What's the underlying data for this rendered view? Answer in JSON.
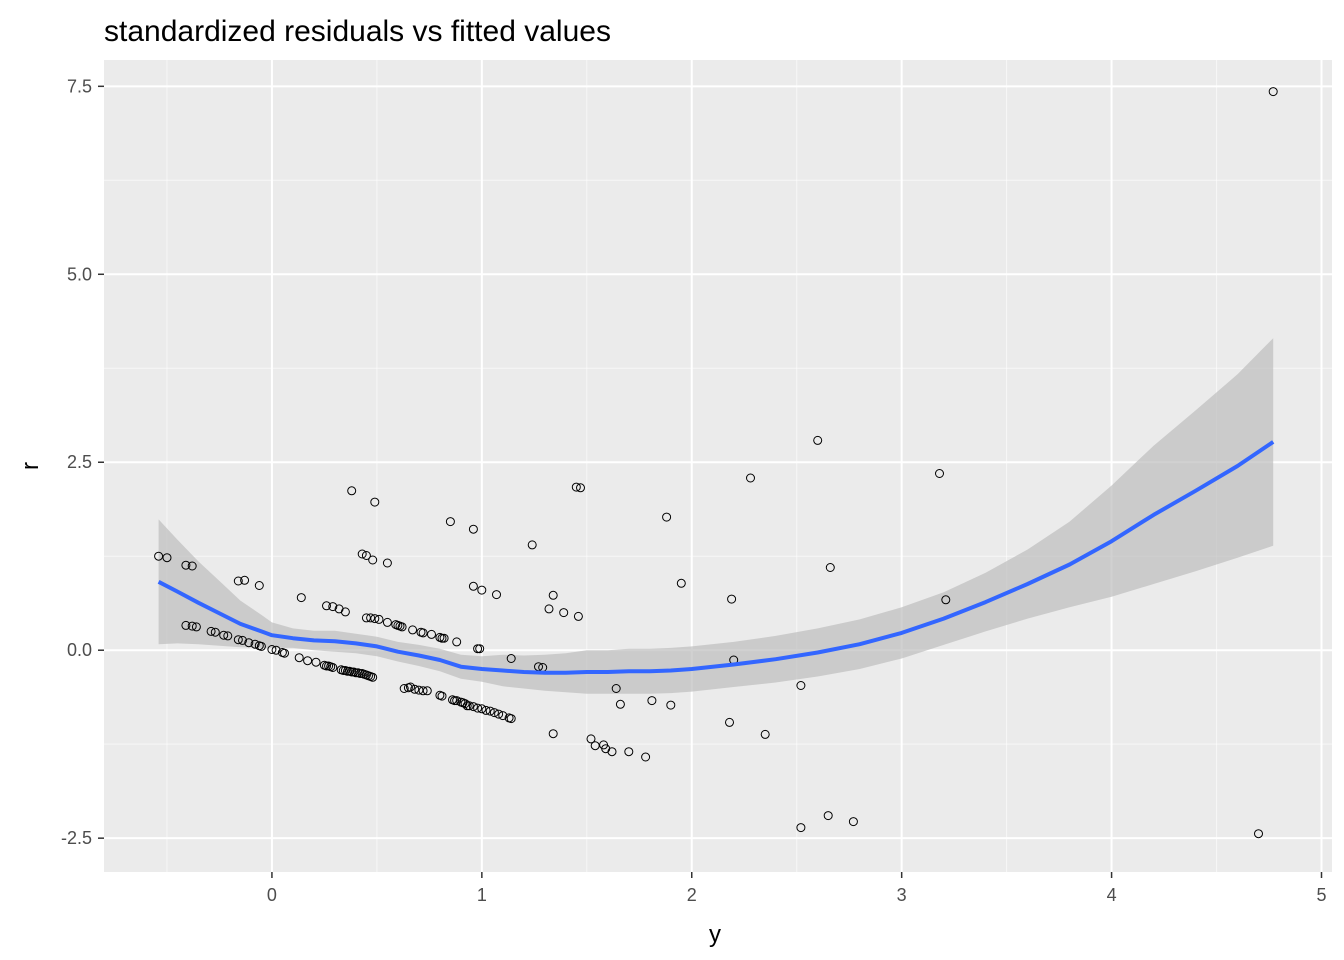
{
  "chart_data": {
    "type": "scatter",
    "title": "standardized residuals vs fitted values",
    "xlabel": "y",
    "ylabel": "r",
    "xlim": [
      -0.8,
      5.05
    ],
    "ylim": [
      -2.95,
      7.85
    ],
    "x_ticks": [
      0,
      1,
      2,
      3,
      4,
      5
    ],
    "y_ticks": [
      -2.5,
      0.0,
      2.5,
      5.0,
      7.5
    ],
    "x_tick_labels": [
      "0",
      "1",
      "2",
      "3",
      "4",
      "5"
    ],
    "y_tick_labels": [
      "-2.5",
      "0.0",
      "2.5",
      "5.0",
      "7.5"
    ],
    "grid": true,
    "legend": "none",
    "colors": {
      "panel": "#ebebeb",
      "grid_major": "#ffffff",
      "smooth_line": "#3366ff",
      "band": "#bdbdbd",
      "points": "#000000"
    },
    "points": [
      [
        -0.54,
        1.25
      ],
      [
        -0.5,
        1.23
      ],
      [
        -0.41,
        1.13
      ],
      [
        -0.38,
        1.12
      ],
      [
        -0.41,
        0.33
      ],
      [
        -0.38,
        0.32
      ],
      [
        -0.36,
        0.31
      ],
      [
        -0.29,
        0.25
      ],
      [
        -0.27,
        0.24
      ],
      [
        -0.23,
        0.2
      ],
      [
        -0.21,
        0.19
      ],
      [
        -0.16,
        0.92
      ],
      [
        -0.13,
        0.93
      ],
      [
        -0.06,
        0.86
      ],
      [
        -0.16,
        0.14
      ],
      [
        -0.14,
        0.13
      ],
      [
        -0.11,
        0.1
      ],
      [
        -0.08,
        0.08
      ],
      [
        -0.06,
        0.06
      ],
      [
        -0.05,
        0.05
      ],
      [
        0.0,
        0.01
      ],
      [
        0.02,
        0.0
      ],
      [
        0.05,
        -0.03
      ],
      [
        0.06,
        -0.04
      ],
      [
        0.13,
        -0.1
      ],
      [
        0.17,
        -0.14
      ],
      [
        0.21,
        -0.16
      ],
      [
        0.14,
        0.7
      ],
      [
        0.26,
        0.59
      ],
      [
        0.29,
        0.58
      ],
      [
        0.32,
        0.55
      ],
      [
        0.35,
        0.51
      ],
      [
        0.25,
        -0.2
      ],
      [
        0.26,
        -0.21
      ],
      [
        0.27,
        -0.21
      ],
      [
        0.28,
        -0.22
      ],
      [
        0.29,
        -0.23
      ],
      [
        0.33,
        -0.26
      ],
      [
        0.34,
        -0.27
      ],
      [
        0.35,
        -0.27
      ],
      [
        0.36,
        -0.28
      ],
      [
        0.37,
        -0.28
      ],
      [
        0.38,
        -0.29
      ],
      [
        0.39,
        -0.29
      ],
      [
        0.4,
        -0.3
      ],
      [
        0.41,
        -0.3
      ],
      [
        0.42,
        -0.31
      ],
      [
        0.43,
        -0.31
      ],
      [
        0.44,
        -0.32
      ],
      [
        0.45,
        -0.33
      ],
      [
        0.46,
        -0.34
      ],
      [
        0.47,
        -0.35
      ],
      [
        0.48,
        -0.36
      ],
      [
        0.38,
        2.12
      ],
      [
        0.49,
        1.97
      ],
      [
        0.43,
        1.28
      ],
      [
        0.45,
        1.26
      ],
      [
        0.48,
        1.2
      ],
      [
        0.55,
        1.16
      ],
      [
        0.45,
        0.43
      ],
      [
        0.47,
        0.43
      ],
      [
        0.49,
        0.42
      ],
      [
        0.51,
        0.41
      ],
      [
        0.55,
        0.37
      ],
      [
        0.59,
        0.34
      ],
      [
        0.6,
        0.33
      ],
      [
        0.61,
        0.32
      ],
      [
        0.62,
        0.31
      ],
      [
        0.67,
        0.27
      ],
      [
        0.71,
        0.24
      ],
      [
        0.72,
        0.23
      ],
      [
        0.76,
        0.21
      ],
      [
        0.8,
        0.17
      ],
      [
        0.81,
        0.16
      ],
      [
        0.82,
        0.16
      ],
      [
        0.88,
        0.11
      ],
      [
        0.63,
        -0.51
      ],
      [
        0.65,
        -0.5
      ],
      [
        0.66,
        -0.49
      ],
      [
        0.68,
        -0.52
      ],
      [
        0.7,
        -0.53
      ],
      [
        0.72,
        -0.54
      ],
      [
        0.74,
        -0.54
      ],
      [
        0.8,
        -0.6
      ],
      [
        0.81,
        -0.61
      ],
      [
        0.86,
        -0.66
      ],
      [
        0.87,
        -0.67
      ],
      [
        0.88,
        -0.67
      ],
      [
        0.9,
        -0.69
      ],
      [
        0.91,
        -0.7
      ],
      [
        0.92,
        -0.71
      ],
      [
        0.93,
        -0.74
      ],
      [
        0.94,
        -0.74
      ],
      [
        0.96,
        -0.75
      ],
      [
        0.98,
        -0.77
      ],
      [
        1.0,
        -0.78
      ],
      [
        1.02,
        -0.8
      ],
      [
        1.04,
        -0.81
      ],
      [
        1.06,
        -0.83
      ],
      [
        1.08,
        -0.85
      ],
      [
        1.1,
        -0.87
      ],
      [
        1.13,
        -0.9
      ],
      [
        1.14,
        -0.91
      ],
      [
        0.85,
        1.71
      ],
      [
        0.96,
        1.61
      ],
      [
        0.96,
        0.85
      ],
      [
        1.0,
        0.8
      ],
      [
        1.07,
        0.74
      ],
      [
        0.98,
        0.02
      ],
      [
        0.99,
        0.02
      ],
      [
        1.14,
        -0.11
      ],
      [
        1.24,
        1.4
      ],
      [
        1.27,
        -0.22
      ],
      [
        1.29,
        -0.23
      ],
      [
        1.32,
        0.55
      ],
      [
        1.34,
        0.73
      ],
      [
        1.39,
        0.5
      ],
      [
        1.46,
        0.45
      ],
      [
        1.45,
        2.17
      ],
      [
        1.47,
        2.16
      ],
      [
        1.34,
        -1.11
      ],
      [
        1.52,
        -1.18
      ],
      [
        1.54,
        -1.27
      ],
      [
        1.58,
        -1.26
      ],
      [
        1.59,
        -1.31
      ],
      [
        1.62,
        -1.35
      ],
      [
        1.64,
        -0.51
      ],
      [
        1.66,
        -0.72
      ],
      [
        1.7,
        -1.35
      ],
      [
        1.78,
        -1.42
      ],
      [
        1.81,
        -0.67
      ],
      [
        1.88,
        1.77
      ],
      [
        1.9,
        -0.73
      ],
      [
        1.95,
        0.89
      ],
      [
        2.18,
        -0.96
      ],
      [
        2.19,
        0.68
      ],
      [
        2.2,
        -0.13
      ],
      [
        2.28,
        2.29
      ],
      [
        2.35,
        -1.12
      ],
      [
        2.52,
        -0.47
      ],
      [
        2.52,
        -2.36
      ],
      [
        2.6,
        2.79
      ],
      [
        2.65,
        -2.2
      ],
      [
        2.66,
        1.1
      ],
      [
        2.77,
        -2.28
      ],
      [
        3.18,
        2.35
      ],
      [
        3.21,
        0.67
      ],
      [
        4.7,
        -2.44
      ],
      [
        4.77,
        7.43
      ]
    ],
    "smooth": {
      "x": [
        -0.54,
        -0.45,
        -0.35,
        -0.25,
        -0.15,
        -0.05,
        0.0,
        0.1,
        0.2,
        0.3,
        0.4,
        0.5,
        0.6,
        0.7,
        0.8,
        0.9,
        1.0,
        1.1,
        1.2,
        1.3,
        1.4,
        1.5,
        1.6,
        1.7,
        1.8,
        1.9,
        2.0,
        2.2,
        2.4,
        2.6,
        2.8,
        3.0,
        3.2,
        3.4,
        3.6,
        3.8,
        4.0,
        4.2,
        4.4,
        4.6,
        4.77
      ],
      "y": [
        0.91,
        0.78,
        0.63,
        0.49,
        0.35,
        0.25,
        0.2,
        0.16,
        0.13,
        0.12,
        0.09,
        0.05,
        -0.02,
        -0.07,
        -0.13,
        -0.22,
        -0.25,
        -0.27,
        -0.29,
        -0.3,
        -0.3,
        -0.29,
        -0.29,
        -0.28,
        -0.28,
        -0.27,
        -0.25,
        -0.19,
        -0.12,
        -0.03,
        0.08,
        0.23,
        0.42,
        0.64,
        0.88,
        1.14,
        1.45,
        1.8,
        2.12,
        2.45,
        2.77
      ],
      "lower": [
        0.08,
        0.09,
        0.08,
        0.06,
        0.04,
        0.03,
        0.03,
        0.03,
        -0.0,
        -0.02,
        -0.04,
        -0.08,
        -0.15,
        -0.21,
        -0.28,
        -0.38,
        -0.42,
        -0.48,
        -0.51,
        -0.54,
        -0.56,
        -0.58,
        -0.58,
        -0.58,
        -0.58,
        -0.57,
        -0.55,
        -0.49,
        -0.43,
        -0.35,
        -0.25,
        -0.11,
        0.07,
        0.25,
        0.42,
        0.57,
        0.71,
        0.88,
        1.05,
        1.23,
        1.39
      ],
      "upper": [
        1.74,
        1.47,
        1.18,
        0.92,
        0.66,
        0.47,
        0.37,
        0.29,
        0.26,
        0.26,
        0.22,
        0.18,
        0.11,
        0.07,
        0.02,
        -0.06,
        -0.08,
        -0.06,
        -0.07,
        -0.06,
        -0.04,
        0.0,
        0.0,
        0.02,
        0.02,
        0.03,
        0.05,
        0.11,
        0.19,
        0.29,
        0.41,
        0.57,
        0.77,
        1.03,
        1.34,
        1.71,
        2.19,
        2.72,
        3.19,
        3.67,
        4.15
      ]
    }
  }
}
